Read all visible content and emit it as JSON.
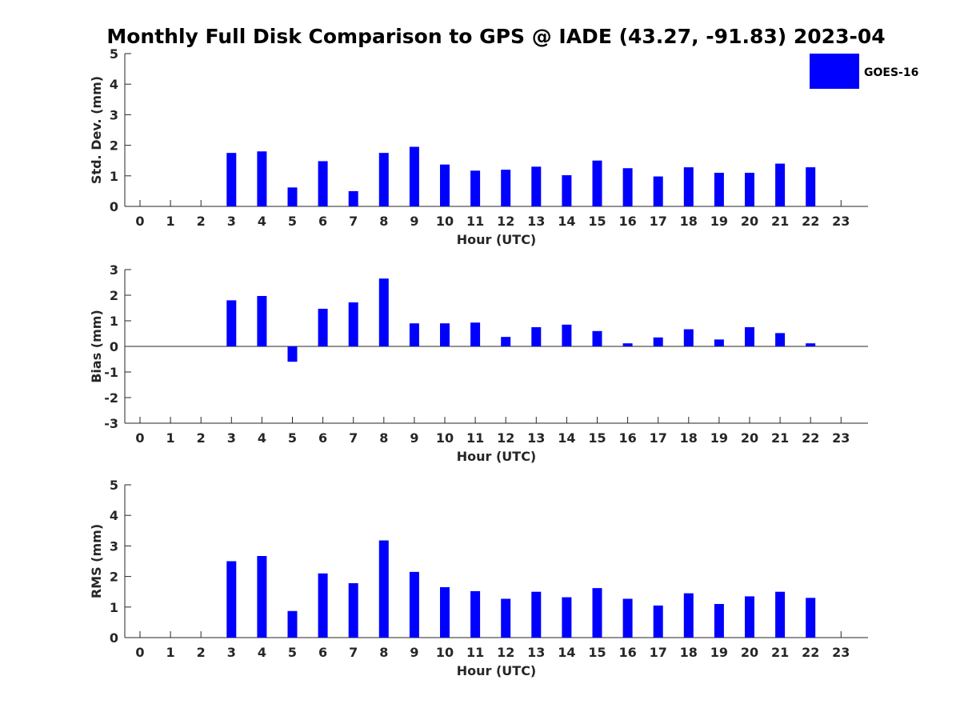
{
  "title": "Monthly Full Disk Comparison to GPS @ IADE (43.27, -91.83) 2023-04",
  "legend": {
    "label": "GOES-16",
    "color": "#0000ff",
    "placement": "top-right"
  },
  "chart_data": [
    {
      "type": "bar",
      "ylabel": "Std. Dev. (mm)",
      "xlabel": "Hour (UTC)",
      "ylim": [
        0,
        5
      ],
      "yticks": [
        0,
        1,
        2,
        3,
        4,
        5
      ],
      "categories": [
        "0",
        "1",
        "2",
        "3",
        "4",
        "5",
        "6",
        "7",
        "8",
        "9",
        "10",
        "11",
        "12",
        "13",
        "14",
        "15",
        "16",
        "17",
        "18",
        "19",
        "20",
        "21",
        "22",
        "23"
      ],
      "series": [
        {
          "name": "GOES-16",
          "color": "#0000ff",
          "values": [
            null,
            null,
            null,
            1.75,
            1.8,
            0.62,
            1.48,
            0.5,
            1.75,
            1.95,
            1.37,
            1.17,
            1.2,
            1.3,
            1.02,
            1.5,
            1.25,
            0.98,
            1.28,
            1.1,
            1.1,
            1.4,
            1.28,
            null
          ]
        }
      ]
    },
    {
      "type": "bar",
      "ylabel": "Bias (mm)",
      "xlabel": "Hour (UTC)",
      "ylim": [
        -3,
        3
      ],
      "yticks": [
        -3,
        -2,
        -1,
        0,
        1,
        2,
        3
      ],
      "categories": [
        "0",
        "1",
        "2",
        "3",
        "4",
        "5",
        "6",
        "7",
        "8",
        "9",
        "10",
        "11",
        "12",
        "13",
        "14",
        "15",
        "16",
        "17",
        "18",
        "19",
        "20",
        "21",
        "22",
        "23"
      ],
      "series": [
        {
          "name": "GOES-16",
          "color": "#0000ff",
          "values": [
            null,
            null,
            null,
            1.8,
            1.97,
            -0.6,
            1.47,
            1.72,
            2.65,
            0.9,
            0.9,
            0.93,
            0.37,
            0.75,
            0.85,
            0.6,
            0.12,
            0.35,
            0.67,
            0.27,
            0.75,
            0.52,
            0.12,
            null
          ]
        }
      ]
    },
    {
      "type": "bar",
      "ylabel": "RMS (mm)",
      "xlabel": "Hour (UTC)",
      "ylim": [
        0,
        5
      ],
      "yticks": [
        0,
        1,
        2,
        3,
        4,
        5
      ],
      "categories": [
        "0",
        "1",
        "2",
        "3",
        "4",
        "5",
        "6",
        "7",
        "8",
        "9",
        "10",
        "11",
        "12",
        "13",
        "14",
        "15",
        "16",
        "17",
        "18",
        "19",
        "20",
        "21",
        "22",
        "23"
      ],
      "series": [
        {
          "name": "GOES-16",
          "color": "#0000ff",
          "values": [
            null,
            null,
            null,
            2.5,
            2.67,
            0.87,
            2.1,
            1.78,
            3.18,
            2.15,
            1.65,
            1.52,
            1.27,
            1.5,
            1.32,
            1.62,
            1.27,
            1.05,
            1.45,
            1.1,
            1.35,
            1.5,
            1.3,
            null
          ]
        }
      ]
    }
  ]
}
